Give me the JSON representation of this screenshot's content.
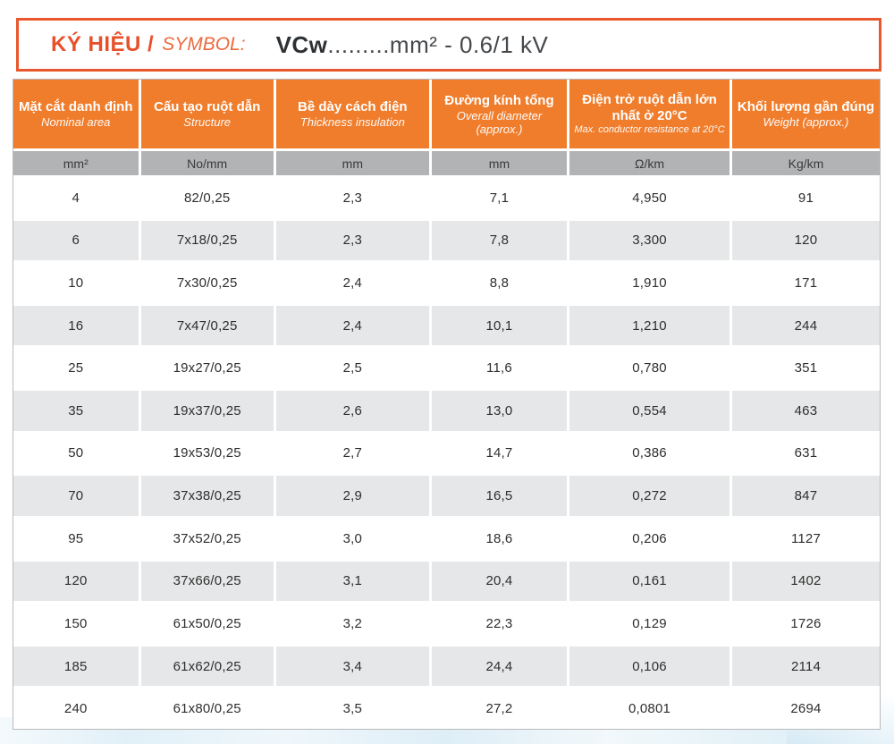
{
  "symbol_box": {
    "label_vi": "KÝ HIỆU /",
    "label_en": "SYMBOL:",
    "value_prefix": "VCw",
    "value_rest": ".........mm² - 0.6/1 kV"
  },
  "colors": {
    "accent_orange_header": "#F07D2C",
    "symbol_red_orange": "#E8502A",
    "units_row_gray": "#B2B3B5",
    "alt_row_gray": "#E6E7E8"
  },
  "table": {
    "headers": [
      {
        "vi": "Mặt cắt danh định",
        "en": "Nominal area"
      },
      {
        "vi": "Cấu tạo ruột dẫn",
        "en": "Structure"
      },
      {
        "vi": "Bề dày cách điện",
        "en": "Thickness insulation"
      },
      {
        "vi": "Đường kính tổng",
        "en": "Overall diameter (approx.)"
      },
      {
        "vi": "Điện trở ruột dẫn lớn nhất ở 20°C",
        "en": "Max. conductor resistance at 20°C"
      },
      {
        "vi": "Khối lượng gần đúng",
        "en": "Weight (approx.)"
      }
    ],
    "units": [
      "mm²",
      "No/mm",
      "mm",
      "mm",
      "Ω/km",
      "Kg/km"
    ],
    "rows": [
      [
        "4",
        "82/0,25",
        "2,3",
        "7,1",
        "4,950",
        "91"
      ],
      [
        "6",
        "7x18/0,25",
        "2,3",
        "7,8",
        "3,300",
        "120"
      ],
      [
        "10",
        "7x30/0,25",
        "2,4",
        "8,8",
        "1,910",
        "171"
      ],
      [
        "16",
        "7x47/0,25",
        "2,4",
        "10,1",
        "1,210",
        "244"
      ],
      [
        "25",
        "19x27/0,25",
        "2,5",
        "11,6",
        "0,780",
        "351"
      ],
      [
        "35",
        "19x37/0,25",
        "2,6",
        "13,0",
        "0,554",
        "463"
      ],
      [
        "50",
        "19x53/0,25",
        "2,7",
        "14,7",
        "0,386",
        "631"
      ],
      [
        "70",
        "37x38/0,25",
        "2,9",
        "16,5",
        "0,272",
        "847"
      ],
      [
        "95",
        "37x52/0,25",
        "3,0",
        "18,6",
        "0,206",
        "1127"
      ],
      [
        "120",
        "37x66/0,25",
        "3,1",
        "20,4",
        "0,161",
        "1402"
      ],
      [
        "150",
        "61x50/0,25",
        "3,2",
        "22,3",
        "0,129",
        "1726"
      ],
      [
        "185",
        "61x62/0,25",
        "3,4",
        "24,4",
        "0,106",
        "2114"
      ],
      [
        "240",
        "61x80/0,25",
        "3,5",
        "27,2",
        "0,0801",
        "2694"
      ]
    ]
  }
}
